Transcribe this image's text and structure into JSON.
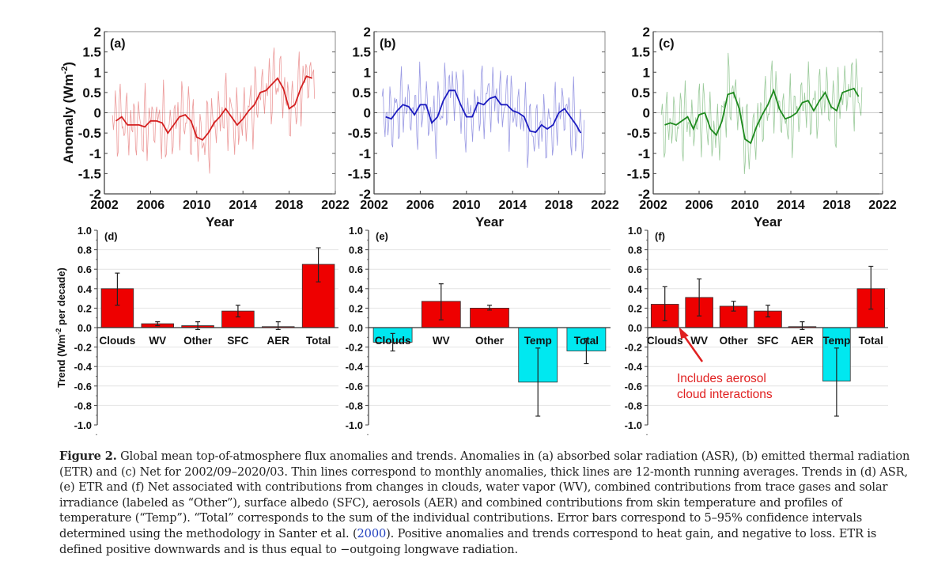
{
  "colors": {
    "asr": "#d42020",
    "etr": "#1c1cc0",
    "net": "#1e8a1e",
    "positive_bar": "#ee0000",
    "negative_bar": "#00e8f0",
    "annotation": "#e02020",
    "link": "#1f3fbf"
  },
  "chart_data": [
    {
      "type": "line",
      "panel_label": "(a)",
      "title": "Absorbed solar radiation (ASR)",
      "xlabel": "Year",
      "ylabel": "Anomaly (Wm",
      "ylabel_sup": "-2",
      "ylabel_end": ")",
      "xlim": [
        2002,
        2022
      ],
      "ylim": [
        -2,
        2
      ],
      "xticks": [
        "2002",
        "2006",
        "2010",
        "2014",
        "2018",
        "2022"
      ],
      "yticks": [
        "2",
        "1.5",
        "1",
        "0.5",
        "0",
        "-0.5",
        "-1",
        "-1.5",
        "-2"
      ],
      "series": [
        {
          "name": "12-month running average",
          "x": [
            2003,
            2003.5,
            2004,
            2004.5,
            2005,
            2005.5,
            2006,
            2006.5,
            2007,
            2007.5,
            2008,
            2008.5,
            2009,
            2009.5,
            2010,
            2010.5,
            2011,
            2011.5,
            2012,
            2012.5,
            2013,
            2013.5,
            2014,
            2014.5,
            2015,
            2015.5,
            2016,
            2016.5,
            2017,
            2017.5,
            2018,
            2018.5,
            2019,
            2019.5,
            2020
          ],
          "y": [
            -0.2,
            -0.1,
            -0.3,
            -0.3,
            -0.3,
            -0.35,
            -0.2,
            -0.2,
            -0.25,
            -0.5,
            -0.3,
            -0.1,
            -0.05,
            -0.2,
            -0.6,
            -0.67,
            -0.5,
            -0.25,
            -0.1,
            0.1,
            -0.1,
            -0.3,
            -0.15,
            0.05,
            0.2,
            0.5,
            0.55,
            0.7,
            0.85,
            0.6,
            0.1,
            0.2,
            0.6,
            0.9,
            0.85
          ]
        }
      ]
    },
    {
      "type": "line",
      "panel_label": "(b)",
      "title": "Emitted thermal radiation (ETR)",
      "xlabel": "Year",
      "xlim": [
        2002,
        2022
      ],
      "ylim": [
        -2,
        2
      ],
      "xticks": [
        "2002",
        "2006",
        "2010",
        "2014",
        "2018",
        "2022"
      ],
      "yticks": [
        "2",
        "1.5",
        "1",
        "0.5",
        "0",
        "-0.5",
        "-1",
        "-1.5",
        "-2"
      ],
      "series": [
        {
          "name": "12-month running average",
          "x": [
            2003,
            2003.5,
            2004,
            2004.5,
            2005,
            2005.5,
            2006,
            2006.5,
            2007,
            2007.5,
            2008,
            2008.5,
            2009,
            2009.5,
            2010,
            2010.5,
            2011,
            2011.5,
            2012,
            2012.5,
            2013,
            2013.5,
            2014,
            2014.5,
            2015,
            2015.5,
            2016,
            2016.5,
            2017,
            2017.5,
            2018,
            2018.5,
            2019,
            2019.5,
            2019.9
          ],
          "y": [
            -0.1,
            -0.15,
            0.05,
            0.2,
            0.15,
            -0.05,
            0.2,
            0.2,
            -0.25,
            -0.1,
            0.3,
            0.55,
            0.55,
            0.2,
            -0.1,
            -0.1,
            0.25,
            0.2,
            0.35,
            0.4,
            0.2,
            0.2,
            0.05,
            0,
            -0.1,
            -0.45,
            -0.48,
            -0.3,
            -0.4,
            -0.3,
            0,
            0.1,
            -0.1,
            -0.3,
            -0.5
          ]
        }
      ]
    },
    {
      "type": "line",
      "panel_label": "(c)",
      "title": "Net",
      "xlabel": "Year",
      "xlim": [
        2002,
        2022
      ],
      "ylim": [
        -2,
        2
      ],
      "xticks": [
        "2002",
        "2006",
        "2010",
        "2014",
        "2018",
        "2022"
      ],
      "yticks": [
        "2",
        "1.5",
        "1",
        "0.5",
        "0",
        "-0.5",
        "-1",
        "-1.5",
        "-2"
      ],
      "series": [
        {
          "name": "12-month running average",
          "x": [
            2003,
            2003.5,
            2004,
            2004.5,
            2005,
            2005.5,
            2006,
            2006.5,
            2007,
            2007.5,
            2008,
            2008.5,
            2009,
            2009.5,
            2010,
            2010.5,
            2011,
            2011.5,
            2012,
            2012.5,
            2013,
            2013.5,
            2014,
            2014.5,
            2015,
            2015.5,
            2016,
            2016.5,
            2017,
            2017.5,
            2018,
            2018.5,
            2019,
            2019.5,
            2019.9
          ],
          "y": [
            -0.3,
            -0.25,
            -0.3,
            -0.2,
            -0.1,
            -0.4,
            -0.05,
            0,
            -0.4,
            -0.55,
            -0.2,
            0.45,
            0.5,
            0.1,
            -0.65,
            -0.75,
            -0.35,
            -0.05,
            0.2,
            0.55,
            0.1,
            -0.15,
            -0.1,
            0,
            0.25,
            0.3,
            0.05,
            0.3,
            0.5,
            0.15,
            0.05,
            0.5,
            0.55,
            0.6,
            0.4
          ]
        }
      ]
    },
    {
      "type": "bar",
      "panel_label": "(d)",
      "title": "Trends in ASR",
      "ylabel": "Trend (Wm",
      "ylabel_sup": "-2",
      "ylabel_end": " per decade)",
      "ylim": [
        -1,
        1
      ],
      "yticks": [
        "1.0",
        "0.8",
        "0.6",
        "0.4",
        "0.2",
        "0.0",
        "-0.2",
        "-0.4",
        "-0.6",
        "-0.8",
        "-1.0"
      ],
      "categories": [
        "Clouds",
        "WV",
        "Other",
        "SFC",
        "AER",
        "Total"
      ],
      "values": [
        0.4,
        0.04,
        0.02,
        0.17,
        0.01,
        0.65
      ],
      "err_low": [
        0.23,
        0.02,
        -0.02,
        0.11,
        -0.02,
        0.47
      ],
      "err_high": [
        0.56,
        0.06,
        0.06,
        0.23,
        0.06,
        0.82
      ]
    },
    {
      "type": "bar",
      "panel_label": "(e)",
      "title": "Trends in ETR",
      "ylim": [
        -1,
        1
      ],
      "yticks": [
        "1.0",
        "0.8",
        "0.6",
        "0.4",
        "0.2",
        "0.0",
        "-0.2",
        "-0.4",
        "-0.6",
        "-0.8",
        "-1.0"
      ],
      "categories": [
        "Clouds",
        "WV",
        "Other",
        "Temp",
        "Total"
      ],
      "values": [
        -0.15,
        0.27,
        0.2,
        -0.56,
        -0.24
      ],
      "err_low": [
        -0.24,
        0.08,
        0.18,
        -0.91,
        -0.37
      ],
      "err_high": [
        -0.06,
        0.45,
        0.23,
        -0.21,
        -0.11
      ]
    },
    {
      "type": "bar",
      "panel_label": "(f)",
      "title": "Trends in Net",
      "ylim": [
        -1,
        1
      ],
      "yticks": [
        "1.0",
        "0.8",
        "0.6",
        "0.4",
        "0.2",
        "0.0",
        "-0.2",
        "-0.4",
        "-0.6",
        "-0.8",
        "-1.0"
      ],
      "categories": [
        "Clouds",
        "WV",
        "Other",
        "SFC",
        "AER",
        "Temp",
        "Total"
      ],
      "values": [
        0.24,
        0.31,
        0.22,
        0.17,
        0.01,
        -0.55,
        0.4
      ],
      "err_low": [
        0.07,
        0.12,
        0.17,
        0.11,
        -0.02,
        -0.91,
        0.19
      ],
      "err_high": [
        0.42,
        0.5,
        0.27,
        0.23,
        0.06,
        -0.21,
        0.63
      ],
      "annotation": {
        "line1": "Includes aerosol",
        "line2": "cloud interactions",
        "points_to": "Clouds"
      }
    }
  ],
  "caption": {
    "label": "Figure 2.",
    "text_before_link": " Global mean top-of-atmosphere flux anomalies and trends. Anomalies in (a) absorbed solar radiation (ASR), (b) emitted thermal radiation (ETR) and (c) Net for 2002/09–2020/03. Thin lines correspond to monthly anomalies, thick lines are 12-month running averages. Trends in (d) ASR, (e) ETR and (f) Net associated with contributions from changes in clouds, water vapor (WV), combined contributions from trace gases and solar irradiance (labeled as “Other”), surface albedo (SFC), aerosols (AER) and combined contributions from skin temperature and profiles of temperature (“Temp”). “Total” corresponds to the sum of the individual contributions. Error bars correspond to 5–95% confidence intervals determined using the methodology in Santer et al. (",
    "link": "2000",
    "text_after_link": "). Positive anomalies and trends correspond to heat gain, and negative to loss. ETR is defined positive downwards and is thus equal to −outgoing longwave radiation."
  }
}
